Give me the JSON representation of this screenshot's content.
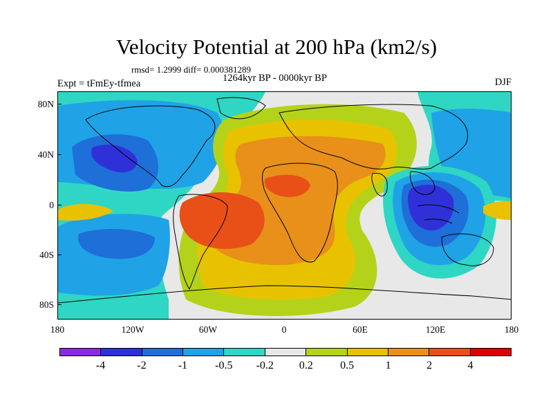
{
  "title": "Velocity Potential at 200 hPa (km2/s)",
  "stats": "rmsd= 1.2999 diff= 0.000381289",
  "period": "1264kyr BP - 0000kyr BP",
  "experiment": "Expt = tFmEy-tfmea",
  "season": "DJF",
  "lat_labels": [
    "80N",
    "40N",
    "0",
    "40S",
    "80S"
  ],
  "lon_labels": [
    "180",
    "120W",
    "60W",
    "0",
    "60E",
    "120E",
    "180"
  ],
  "colorbar": {
    "labels": [
      "-4",
      "-2",
      "-1",
      "-0.5",
      "-0.2",
      "0.2",
      "0.5",
      "1",
      "2",
      "4"
    ],
    "colors": [
      "#8a2be2",
      "#3030d8",
      "#1e6fd8",
      "#1fa3e6",
      "#2fd6c4",
      "#e8e8e8",
      "#b5d21a",
      "#e8c200",
      "#e8901a",
      "#e85018",
      "#e00000"
    ]
  }
}
